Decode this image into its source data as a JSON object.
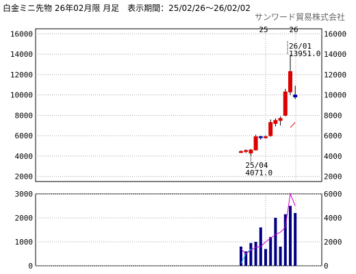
{
  "header": {
    "title": "白金ミニ先物 26年02月限 月足　表示期間：25/02/26～26/02/02",
    "company": "サンワード貿易株式会社"
  },
  "colors": {
    "up": "#dd0000",
    "down": "#0000aa",
    "ma_short": "#dd0000",
    "volume_bar": "#000080",
    "volume_line": "#ff44aa",
    "oi_line": "#cc00cc",
    "grid": "#a0a0a0"
  },
  "chart_data": [
    {
      "type": "candlestick",
      "x_labels": [
        "25",
        "26"
      ],
      "ylim": [
        1500,
        16500
      ],
      "y_ticks": [
        2000,
        4000,
        6000,
        8000,
        10000,
        12000,
        14000,
        16000
      ],
      "grid": true,
      "candles": [
        {
          "o": 4450,
          "h": 4550,
          "l": 4300,
          "c": 4450
        },
        {
          "o": 4450,
          "h": 4650,
          "l": 4300,
          "c": 4550
        },
        {
          "o": 4300,
          "h": 4700,
          "l": 4071,
          "c": 4600
        },
        {
          "o": 4600,
          "h": 6100,
          "l": 4550,
          "c": 5900
        },
        {
          "o": 5900,
          "h": 6000,
          "l": 5600,
          "c": 5800
        },
        {
          "o": 5800,
          "h": 6050,
          "l": 5700,
          "c": 5900
        },
        {
          "o": 6000,
          "h": 7600,
          "l": 5900,
          "c": 7300
        },
        {
          "o": 7200,
          "h": 7700,
          "l": 6900,
          "c": 7500
        },
        {
          "o": 7500,
          "h": 7900,
          "l": 7000,
          "c": 7700
        },
        {
          "o": 8000,
          "h": 10600,
          "l": 7900,
          "c": 10300
        },
        {
          "o": 10300,
          "h": 13951,
          "l": 10000,
          "c": 12300
        },
        {
          "o": 10000,
          "h": 10900,
          "l": 9600,
          "c": 9800
        }
      ],
      "ma_short": [
        null,
        null,
        null,
        null,
        null,
        null,
        null,
        null,
        null,
        null,
        6800,
        7300
      ],
      "annotations": [
        {
          "label": "26/01",
          "value": "13951.0",
          "candle": 10
        },
        {
          "label": "25/04",
          "value": "4071.0",
          "candle": 2
        }
      ]
    },
    {
      "type": "bar",
      "left_ylim": [
        0,
        3000
      ],
      "left_ticks": [
        0,
        1000,
        2000,
        3000
      ],
      "right_ylim": [
        0,
        6000
      ],
      "right_ticks": [
        0,
        2000,
        4000,
        6000
      ],
      "volume": [
        800,
        600,
        950,
        1000,
        1600,
        700,
        1200,
        2000,
        800,
        2150,
        2500,
        2200
      ],
      "volume_line": [
        100,
        500,
        700,
        null,
        null,
        null,
        null,
        null,
        null,
        null,
        null,
        null
      ],
      "open_interest_line": [
        1400,
        1000,
        1300,
        1550,
        1600,
        2000,
        2300,
        2600,
        2800,
        3200,
        6000,
        5000
      ]
    }
  ]
}
